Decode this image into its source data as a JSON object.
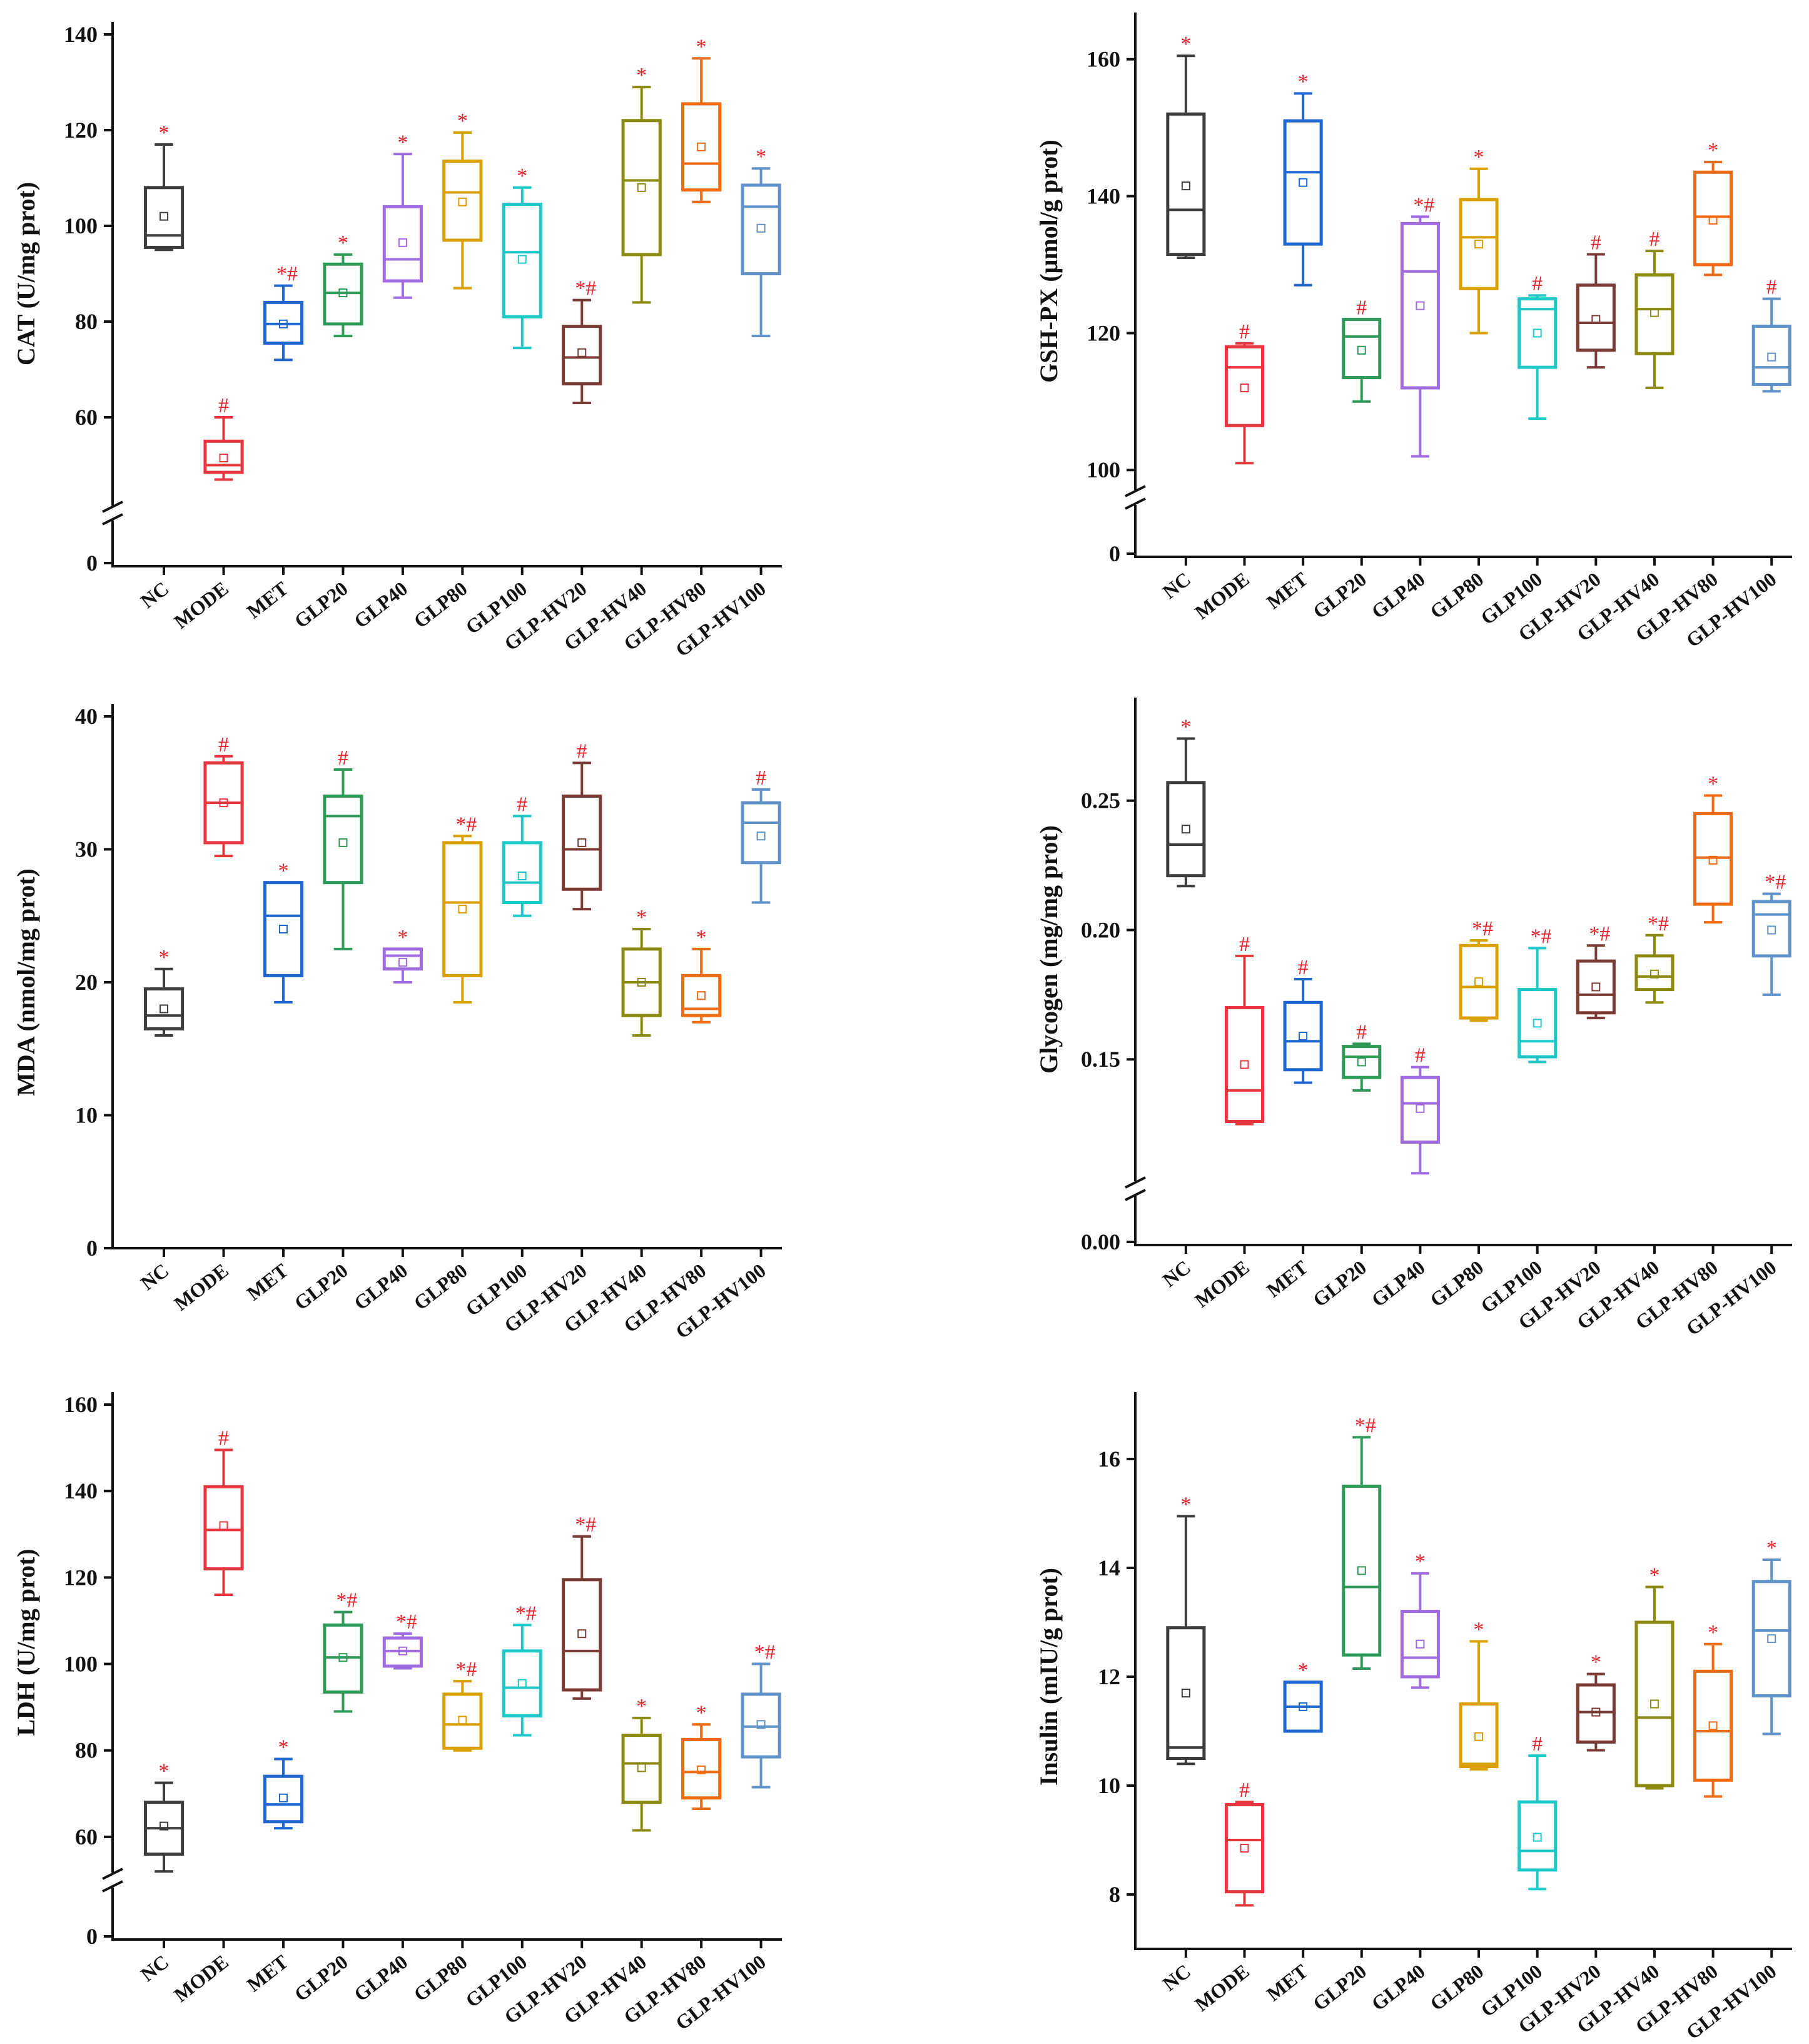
{
  "figure": {
    "categories": [
      "NC",
      "MODE",
      "MET",
      "GLP20",
      "GLP40",
      "GLP80",
      "GLP100",
      "GLP-HV20",
      "GLP-HV40",
      "GLP-HV80",
      "GLP-HV100"
    ],
    "colors": [
      "#3d3d3d",
      "#e8363f",
      "#1f66d1",
      "#2e9a57",
      "#a06ae0",
      "#d9a000",
      "#1ec8c8",
      "#7a3b35",
      "#8b8a0e",
      "#f06a12",
      "#5f92c9"
    ],
    "sig_color": "#e8222a"
  },
  "chart_data": [
    {
      "type": "box",
      "ylabel": "CAT (U/mg prot)",
      "yticks": [
        0,
        60,
        80,
        100,
        120,
        140
      ],
      "ylim": [
        40,
        140
      ],
      "y_break": true,
      "boxes": [
        {
          "min": 95,
          "q1": 95.5,
          "median": 98,
          "q3": 108,
          "max": 117,
          "mean": 102,
          "sig": "*"
        },
        {
          "min": 47,
          "q1": 48.5,
          "median": 50,
          "q3": 55,
          "max": 60,
          "mean": 51.5,
          "sig": "#"
        },
        {
          "min": 72,
          "q1": 75.5,
          "median": 79.5,
          "q3": 84,
          "max": 87.5,
          "mean": 79.5,
          "sig": "*#"
        },
        {
          "min": 77,
          "q1": 79.5,
          "median": 86,
          "q3": 92,
          "max": 94,
          "mean": 86,
          "sig": "*"
        },
        {
          "min": 85,
          "q1": 88.5,
          "median": 93,
          "q3": 104,
          "max": 115,
          "mean": 96.5,
          "sig": "*"
        },
        {
          "min": 87,
          "q1": 97,
          "median": 107,
          "q3": 113.5,
          "max": 119.5,
          "mean": 105,
          "sig": "*"
        },
        {
          "min": 74.5,
          "q1": 81,
          "median": 94.5,
          "q3": 104.5,
          "max": 108,
          "mean": 93,
          "sig": "*"
        },
        {
          "min": 63,
          "q1": 67,
          "median": 72.5,
          "q3": 79,
          "max": 84.5,
          "mean": 73.5,
          "sig": "*#"
        },
        {
          "min": 84,
          "q1": 94,
          "median": 109.5,
          "q3": 122,
          "max": 129,
          "mean": 108,
          "sig": "*"
        },
        {
          "min": 105,
          "q1": 107.5,
          "median": 113,
          "q3": 125.5,
          "max": 135,
          "mean": 116.5,
          "sig": "*"
        },
        {
          "min": 77,
          "q1": 90,
          "median": 104,
          "q3": 108.5,
          "max": 112,
          "mean": 99.5,
          "sig": "*"
        }
      ]
    },
    {
      "type": "box",
      "ylabel": "GSH-PX (μmol/g prot)",
      "yticks": [
        0,
        100,
        120,
        140,
        160
      ],
      "ylim": [
        96,
        165
      ],
      "y_break": true,
      "boxes": [
        {
          "min": 131,
          "q1": 131.5,
          "median": 138,
          "q3": 152,
          "max": 160.5,
          "mean": 141.5,
          "sig": "*"
        },
        {
          "min": 101,
          "q1": 106.5,
          "median": 115,
          "q3": 118,
          "max": 118.5,
          "mean": 112,
          "sig": "#"
        },
        {
          "min": 127,
          "q1": 133,
          "median": 143.5,
          "q3": 151,
          "max": 155,
          "mean": 142,
          "sig": "*"
        },
        {
          "min": 110,
          "q1": 113.5,
          "median": 119.5,
          "q3": 122,
          "max": 122,
          "mean": 117.5,
          "sig": "#"
        },
        {
          "min": 102,
          "q1": 112,
          "median": 129,
          "q3": 136,
          "max": 137,
          "mean": 124,
          "sig": "*#"
        },
        {
          "min": 120,
          "q1": 126.5,
          "median": 134,
          "q3": 139.5,
          "max": 144,
          "mean": 133,
          "sig": "*"
        },
        {
          "min": 107.5,
          "q1": 115,
          "median": 123.5,
          "q3": 125,
          "max": 125.5,
          "mean": 120,
          "sig": "#"
        },
        {
          "min": 115,
          "q1": 117.5,
          "median": 121.5,
          "q3": 127,
          "max": 131.5,
          "mean": 122,
          "sig": "#"
        },
        {
          "min": 112,
          "q1": 117,
          "median": 123.5,
          "q3": 128.5,
          "max": 132,
          "mean": 123,
          "sig": "#"
        },
        {
          "min": 128.5,
          "q1": 130,
          "median": 137,
          "q3": 143.5,
          "max": 145,
          "mean": 136.5,
          "sig": "*"
        },
        {
          "min": 111.5,
          "q1": 112.5,
          "median": 115,
          "q3": 121,
          "max": 125,
          "mean": 116.5,
          "sig": "#"
        }
      ]
    },
    {
      "type": "box",
      "ylabel": "MDA (nmol/mg prot)",
      "yticks": [
        0,
        10,
        20,
        30,
        40
      ],
      "ylim": [
        0,
        40
      ],
      "y_break": false,
      "boxes": [
        {
          "min": 16,
          "q1": 16.5,
          "median": 17.5,
          "q3": 19.5,
          "max": 21,
          "mean": 18,
          "sig": "*"
        },
        {
          "min": 29.5,
          "q1": 30.5,
          "median": 33.5,
          "q3": 36.5,
          "max": 37,
          "mean": 33.5,
          "sig": "#"
        },
        {
          "min": 18.5,
          "q1": 20.5,
          "median": 25,
          "q3": 27.5,
          "max": 27.5,
          "mean": 24,
          "sig": "*"
        },
        {
          "min": 22.5,
          "q1": 27.5,
          "median": 32.5,
          "q3": 34,
          "max": 36,
          "mean": 30.5,
          "sig": "#"
        },
        {
          "min": 20,
          "q1": 21,
          "median": 22,
          "q3": 22.5,
          "max": 22.5,
          "mean": 21.5,
          "sig": "*"
        },
        {
          "min": 18.5,
          "q1": 20.5,
          "median": 26,
          "q3": 30.5,
          "max": 31,
          "mean": 25.5,
          "sig": "*#"
        },
        {
          "min": 25,
          "q1": 26,
          "median": 27.5,
          "q3": 30.5,
          "max": 32.5,
          "mean": 28,
          "sig": "#"
        },
        {
          "min": 25.5,
          "q1": 27,
          "median": 30,
          "q3": 34,
          "max": 36.5,
          "mean": 30.5,
          "sig": "#"
        },
        {
          "min": 16,
          "q1": 17.5,
          "median": 20,
          "q3": 22.5,
          "max": 24,
          "mean": 20,
          "sig": "*"
        },
        {
          "min": 17,
          "q1": 17.5,
          "median": 18,
          "q3": 20.5,
          "max": 22.5,
          "mean": 19,
          "sig": "*"
        },
        {
          "min": 26,
          "q1": 29,
          "median": 32,
          "q3": 33.5,
          "max": 34.5,
          "mean": 31,
          "sig": "#"
        }
      ]
    },
    {
      "type": "box",
      "ylabel": "Glycogen (mg/mg prot)",
      "yticks": [
        0.0,
        0.15,
        0.2,
        0.25
      ],
      "tick_format": "2dp",
      "ylim": [
        0.1,
        0.285
      ],
      "y_break": true,
      "boxes": [
        {
          "min": 0.217,
          "q1": 0.221,
          "median": 0.233,
          "q3": 0.257,
          "max": 0.274,
          "mean": 0.239,
          "sig": "*"
        },
        {
          "min": 0.125,
          "q1": 0.126,
          "median": 0.138,
          "q3": 0.17,
          "max": 0.19,
          "mean": 0.148,
          "sig": "#"
        },
        {
          "min": 0.141,
          "q1": 0.146,
          "median": 0.157,
          "q3": 0.172,
          "max": 0.181,
          "mean": 0.159,
          "sig": "#"
        },
        {
          "min": 0.138,
          "q1": 0.143,
          "median": 0.151,
          "q3": 0.155,
          "max": 0.156,
          "mean": 0.149,
          "sig": "#"
        },
        {
          "min": 0.106,
          "q1": 0.118,
          "median": 0.133,
          "q3": 0.143,
          "max": 0.147,
          "mean": 0.131,
          "sig": "#"
        },
        {
          "min": 0.165,
          "q1": 0.166,
          "median": 0.178,
          "q3": 0.194,
          "max": 0.196,
          "mean": 0.18,
          "sig": "*#"
        },
        {
          "min": 0.149,
          "q1": 0.151,
          "median": 0.157,
          "q3": 0.177,
          "max": 0.193,
          "mean": 0.164,
          "sig": "*#"
        },
        {
          "min": 0.166,
          "q1": 0.168,
          "median": 0.175,
          "q3": 0.188,
          "max": 0.194,
          "mean": 0.178,
          "sig": "*#"
        },
        {
          "min": 0.172,
          "q1": 0.177,
          "median": 0.182,
          "q3": 0.19,
          "max": 0.198,
          "mean": 0.183,
          "sig": "*#"
        },
        {
          "min": 0.203,
          "q1": 0.21,
          "median": 0.228,
          "q3": 0.245,
          "max": 0.252,
          "mean": 0.227,
          "sig": "*"
        },
        {
          "min": 0.175,
          "q1": 0.19,
          "median": 0.206,
          "q3": 0.211,
          "max": 0.214,
          "mean": 0.2,
          "sig": "*#"
        }
      ]
    },
    {
      "type": "box",
      "ylabel": "LDH (U/mg prot)",
      "yticks": [
        0,
        60,
        80,
        100,
        120,
        140,
        160
      ],
      "ylim": [
        50,
        160
      ],
      "y_break": true,
      "boxes": [
        {
          "min": 52,
          "q1": 56,
          "median": 62,
          "q3": 68,
          "max": 72.5,
          "mean": 62.5,
          "sig": "*"
        },
        {
          "min": 116,
          "q1": 122,
          "median": 131,
          "q3": 141,
          "max": 149.5,
          "mean": 132,
          "sig": "#"
        },
        {
          "min": 62,
          "q1": 63.5,
          "median": 67.5,
          "q3": 74,
          "max": 78,
          "mean": 69,
          "sig": "*"
        },
        {
          "min": 89,
          "q1": 93.5,
          "median": 101.5,
          "q3": 109,
          "max": 112,
          "mean": 101.5,
          "sig": "*#"
        },
        {
          "min": 99,
          "q1": 99.5,
          "median": 103,
          "q3": 106,
          "max": 107,
          "mean": 103,
          "sig": "*#"
        },
        {
          "min": 80,
          "q1": 80.5,
          "median": 86,
          "q3": 93,
          "max": 96,
          "mean": 87,
          "sig": "*#"
        },
        {
          "min": 83.5,
          "q1": 88,
          "median": 94.5,
          "q3": 103,
          "max": 109,
          "mean": 95.5,
          "sig": "*#"
        },
        {
          "min": 92,
          "q1": 94,
          "median": 103,
          "q3": 119.5,
          "max": 129.5,
          "mean": 107,
          "sig": "*#"
        },
        {
          "min": 61.5,
          "q1": 68,
          "median": 77,
          "q3": 83.5,
          "max": 87.5,
          "mean": 76,
          "sig": "*"
        },
        {
          "min": 66.5,
          "q1": 69,
          "median": 75,
          "q3": 82.5,
          "max": 86,
          "mean": 75.5,
          "sig": "*"
        },
        {
          "min": 71.5,
          "q1": 78.5,
          "median": 85.5,
          "q3": 93,
          "max": 100,
          "mean": 86,
          "sig": "*#"
        }
      ]
    },
    {
      "type": "box",
      "ylabel": "Insulin (mIU/g prot)",
      "yticks": [
        8,
        10,
        12,
        14,
        16
      ],
      "ylim": [
        7,
        17
      ],
      "y_break": false,
      "boxes": [
        {
          "min": 10.4,
          "q1": 10.5,
          "median": 10.7,
          "q3": 12.9,
          "max": 14.95,
          "mean": 11.7,
          "sig": "*"
        },
        {
          "min": 7.8,
          "q1": 8.05,
          "median": 9.0,
          "q3": 9.65,
          "max": 9.7,
          "mean": 8.85,
          "sig": "#"
        },
        {
          "min": 11.0,
          "q1": 11.0,
          "median": 11.45,
          "q3": 11.9,
          "max": 11.9,
          "mean": 11.45,
          "sig": "*"
        },
        {
          "min": 12.15,
          "q1": 12.4,
          "median": 13.65,
          "q3": 15.5,
          "max": 16.4,
          "mean": 13.95,
          "sig": "*#"
        },
        {
          "min": 11.8,
          "q1": 12.0,
          "median": 12.35,
          "q3": 13.2,
          "max": 13.9,
          "mean": 12.6,
          "sig": "*"
        },
        {
          "min": 10.3,
          "q1": 10.35,
          "median": 10.4,
          "q3": 11.5,
          "max": 12.65,
          "mean": 10.9,
          "sig": "*"
        },
        {
          "min": 8.1,
          "q1": 8.45,
          "median": 8.8,
          "q3": 9.7,
          "max": 10.55,
          "mean": 9.05,
          "sig": "#"
        },
        {
          "min": 10.65,
          "q1": 10.8,
          "median": 11.35,
          "q3": 11.85,
          "max": 12.05,
          "mean": 11.35,
          "sig": "*"
        },
        {
          "min": 9.95,
          "q1": 10.0,
          "median": 11.25,
          "q3": 13.0,
          "max": 13.65,
          "mean": 11.5,
          "sig": "*"
        },
        {
          "min": 9.8,
          "q1": 10.1,
          "median": 11.0,
          "q3": 12.1,
          "max": 12.6,
          "mean": 11.1,
          "sig": "*"
        },
        {
          "min": 10.95,
          "q1": 11.65,
          "median": 12.85,
          "q3": 13.75,
          "max": 14.15,
          "mean": 12.7,
          "sig": "*"
        }
      ]
    }
  ]
}
